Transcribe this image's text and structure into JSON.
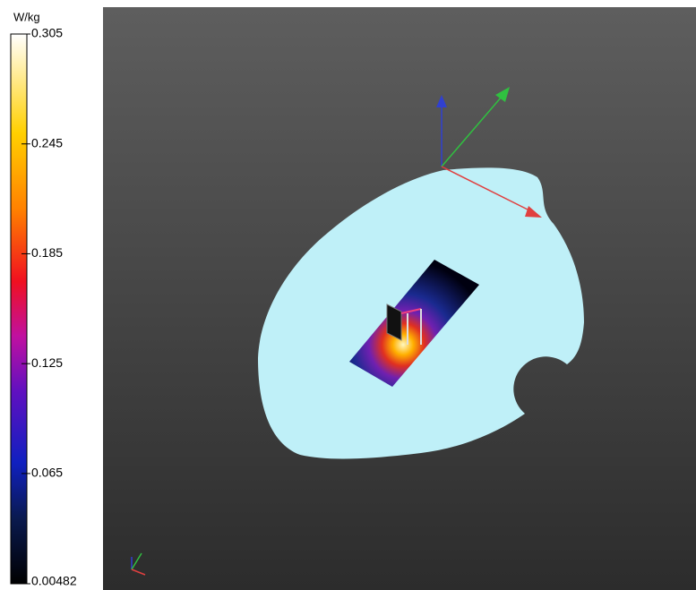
{
  "colorbar": {
    "unit": "W/kg",
    "ticks": [
      0.305,
      0.245,
      0.185,
      0.125,
      0.065,
      0.00482
    ]
  }
}
